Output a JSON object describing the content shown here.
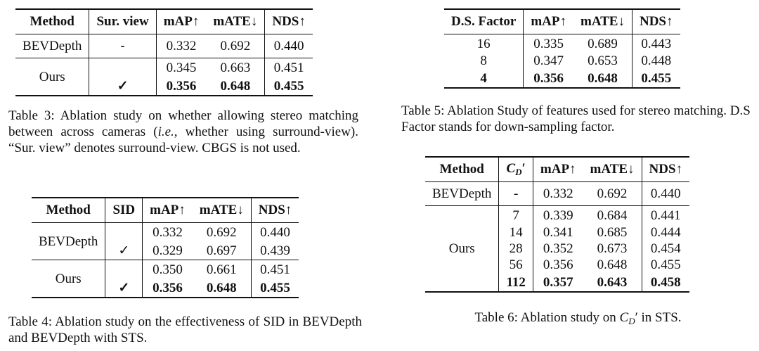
{
  "table3": {
    "header": [
      "Method",
      "Sur. view",
      "mAP↑",
      "mATE↓",
      "NDS↑"
    ],
    "groups": [
      {
        "method": "BEVDepth",
        "rows": [
          {
            "cells": [
              "-",
              "0.332",
              "0.692",
              "0.440"
            ]
          }
        ]
      },
      {
        "method": "Ours",
        "rows": [
          {
            "cells": [
              null,
              "0.345",
              "0.663",
              "0.451"
            ]
          },
          {
            "cells": [
              "✓",
              "0.356",
              "0.648",
              "0.455"
            ],
            "bold": true
          }
        ]
      }
    ],
    "caption": [
      {
        "text": "Table 3: Ablation study on whether allowing stereo matching between across cameras ("
      },
      {
        "text": "i.e.",
        "italic": true
      },
      {
        "text": ", whether using surround-view). “Sur. view” denotes surround-view. CBGS is not used."
      }
    ]
  },
  "table4": {
    "header": [
      "Method",
      "SID",
      "mAP↑",
      "mATE↓",
      "NDS↑"
    ],
    "groups": [
      {
        "method": "BEVDepth",
        "rows": [
          {
            "cells": [
              null,
              "0.332",
              "0.692",
              "0.440"
            ]
          },
          {
            "cells": [
              "✓",
              "0.329",
              "0.697",
              "0.439"
            ]
          }
        ]
      },
      {
        "method": "Ours",
        "rows": [
          {
            "cells": [
              null,
              "0.350",
              "0.661",
              "0.451"
            ]
          },
          {
            "cells": [
              "✓",
              "0.356",
              "0.648",
              "0.455"
            ],
            "bold": true
          }
        ]
      }
    ],
    "caption": [
      {
        "text": "Table 4: Ablation study on the effectiveness of SID in BEVDepth and BEVDepth with STS."
      }
    ]
  },
  "table5": {
    "header": [
      "D.S. Factor",
      "mAP↑",
      "mATE↓",
      "NDS↑"
    ],
    "groups": [
      {
        "rows": [
          {
            "cells": [
              "16",
              "0.335",
              "0.689",
              "0.443"
            ]
          },
          {
            "cells": [
              "8",
              "0.347",
              "0.653",
              "0.448"
            ]
          },
          {
            "cells": [
              "4",
              "0.356",
              "0.648",
              "0.455"
            ],
            "bold": true
          }
        ]
      }
    ],
    "caption": [
      {
        "text": "Table 5: Ablation Study of features used for stereo matching. D.S Factor stands for down-sampling factor."
      }
    ]
  },
  "table6": {
    "header": [
      "Method",
      {
        "base": "C",
        "sub": "D",
        "prime": "′"
      },
      "mAP↑",
      "mATE↓",
      "NDS↑"
    ],
    "groups": [
      {
        "method": "BEVDepth",
        "rows": [
          {
            "cells": [
              "-",
              "0.332",
              "0.692",
              "0.440"
            ]
          }
        ]
      },
      {
        "method": "Ours",
        "rows": [
          {
            "cells": [
              "7",
              "0.339",
              "0.684",
              "0.441"
            ]
          },
          {
            "cells": [
              "14",
              "0.341",
              "0.685",
              "0.444"
            ]
          },
          {
            "cells": [
              "28",
              "0.352",
              "0.673",
              "0.454"
            ]
          },
          {
            "cells": [
              "56",
              "0.356",
              "0.648",
              "0.455"
            ]
          },
          {
            "cells": [
              "112",
              "0.357",
              "0.643",
              "0.458"
            ],
            "bold": true
          }
        ]
      }
    ],
    "caption": [
      {
        "text": "Table 6: Ablation study on "
      },
      {
        "base": "C",
        "sub": "D",
        "prime": "′"
      },
      {
        "text": " in STS."
      }
    ]
  }
}
